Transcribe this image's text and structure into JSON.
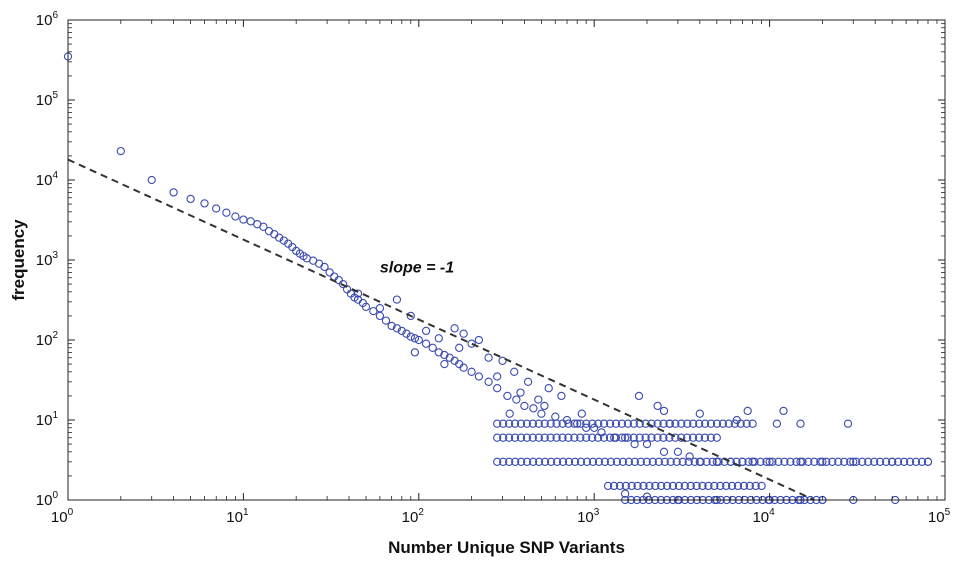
{
  "chart_data": {
    "type": "scatter",
    "title": "",
    "xlabel": "Number Unique SNP Variants",
    "ylabel": "frequency",
    "x_scale": "log",
    "y_scale": "log",
    "xlim": [
      1,
      100000
    ],
    "ylim": [
      1,
      1000000
    ],
    "x_ticks": [
      {
        "base": "10",
        "exp": "0",
        "value": 1
      },
      {
        "base": "10",
        "exp": "1",
        "value": 10
      },
      {
        "base": "10",
        "exp": "2",
        "value": 100
      },
      {
        "base": "10",
        "exp": "3",
        "value": 1000
      },
      {
        "base": "10",
        "exp": "4",
        "value": 10000
      },
      {
        "base": "10",
        "exp": "5",
        "value": 100000
      }
    ],
    "y_ticks": [
      {
        "base": "10",
        "exp": "0",
        "value": 1
      },
      {
        "base": "10",
        "exp": "1",
        "value": 10
      },
      {
        "base": "10",
        "exp": "2",
        "value": 100
      },
      {
        "base": "10",
        "exp": "3",
        "value": 1000
      },
      {
        "base": "10",
        "exp": "4",
        "value": 10000
      },
      {
        "base": "10",
        "exp": "5",
        "value": 100000
      },
      {
        "base": "10",
        "exp": "6",
        "value": 1000000
      }
    ],
    "grid": false,
    "marker_color": "#3b4bb0",
    "line_color": "#333333",
    "series": [
      {
        "type": "scatter",
        "marker": "open-circle",
        "points": [
          [
            1,
            350000
          ],
          [
            2,
            23000
          ],
          [
            3,
            10000
          ],
          [
            4,
            7000
          ],
          [
            5,
            5800
          ],
          [
            6,
            5100
          ],
          [
            7,
            4400
          ],
          [
            8,
            3900
          ],
          [
            9,
            3500
          ],
          [
            10,
            3200
          ],
          [
            11,
            3050
          ],
          [
            12,
            2800
          ],
          [
            13,
            2600
          ],
          [
            14,
            2300
          ],
          [
            15,
            2100
          ],
          [
            16,
            1900
          ],
          [
            17,
            1750
          ],
          [
            18,
            1600
          ],
          [
            19,
            1450
          ],
          [
            20,
            1300
          ],
          [
            21,
            1200
          ],
          [
            22,
            1120
          ],
          [
            23,
            1050
          ],
          [
            25,
            980
          ],
          [
            27,
            900
          ],
          [
            29,
            820
          ],
          [
            31,
            700
          ],
          [
            33,
            620
          ],
          [
            35,
            560
          ],
          [
            37,
            500
          ],
          [
            39,
            430
          ],
          [
            41,
            380
          ],
          [
            43,
            340
          ],
          [
            45,
            320
          ],
          [
            48,
            290
          ],
          [
            50,
            260
          ],
          [
            55,
            230
          ],
          [
            60,
            200
          ],
          [
            65,
            175
          ],
          [
            70,
            150
          ],
          [
            75,
            140
          ],
          [
            80,
            130
          ],
          [
            85,
            120
          ],
          [
            90,
            110
          ],
          [
            95,
            105
          ],
          [
            100,
            100
          ],
          [
            110,
            90
          ],
          [
            120,
            80
          ],
          [
            130,
            70
          ],
          [
            140,
            65
          ],
          [
            150,
            60
          ],
          [
            160,
            55
          ],
          [
            170,
            50
          ],
          [
            180,
            45
          ],
          [
            200,
            40
          ],
          [
            220,
            35
          ],
          [
            250,
            30
          ],
          [
            280,
            25
          ],
          [
            320,
            20
          ],
          [
            360,
            18
          ],
          [
            400,
            15
          ],
          [
            450,
            14
          ],
          [
            500,
            12
          ],
          [
            600,
            11
          ],
          [
            700,
            10
          ],
          [
            800,
            9
          ],
          [
            900,
            8
          ],
          [
            1000,
            8
          ],
          [
            1100,
            7
          ],
          [
            1300,
            6
          ],
          [
            1500,
            6
          ],
          [
            1700,
            5
          ],
          [
            2000,
            5
          ],
          [
            2500,
            4
          ],
          [
            3000,
            4
          ],
          [
            3500,
            3.5
          ],
          [
            4000,
            3
          ],
          [
            5000,
            3
          ],
          [
            6000,
            3
          ],
          [
            7000,
            3
          ],
          [
            8000,
            3
          ],
          [
            10000,
            3
          ],
          [
            15000,
            3
          ],
          [
            20000,
            3
          ],
          [
            30000,
            3
          ],
          [
            50000,
            3
          ],
          [
            80000,
            3
          ],
          [
            1500,
            1.2
          ],
          [
            2000,
            1.1
          ],
          [
            3000,
            1
          ],
          [
            5000,
            1
          ],
          [
            10000,
            1
          ],
          [
            15000,
            1
          ],
          [
            20000,
            1
          ],
          [
            30000,
            1
          ],
          [
            52000,
            1
          ],
          [
            15000,
            9
          ],
          [
            28000,
            9
          ],
          [
            12000,
            13
          ],
          [
            2500,
            13
          ],
          [
            1800,
            20
          ],
          [
            2300,
            15
          ],
          [
            6500,
            10
          ],
          [
            11000,
            9
          ],
          [
            7500,
            13
          ],
          [
            4000,
            12
          ],
          [
            2700,
            9
          ],
          [
            850,
            12
          ],
          [
            180,
            120
          ],
          [
            220,
            100
          ],
          [
            300,
            55
          ],
          [
            75,
            320
          ],
          [
            90,
            200
          ],
          [
            45,
            380
          ],
          [
            60,
            250
          ],
          [
            130,
            105
          ],
          [
            170,
            80
          ],
          [
            250,
            60
          ],
          [
            350,
            40
          ],
          [
            420,
            30
          ],
          [
            550,
            25
          ],
          [
            650,
            20
          ],
          [
            520,
            15
          ],
          [
            330,
            12
          ],
          [
            140,
            50
          ],
          [
            110,
            130
          ],
          [
            95,
            70
          ],
          [
            160,
            140
          ],
          [
            200,
            90
          ],
          [
            280,
            35
          ],
          [
            380,
            22
          ],
          [
            480,
            18
          ]
        ],
        "flat_bands": [
          {
            "y": 9,
            "x_from": 280,
            "x_to": 8000
          },
          {
            "y": 6,
            "x_from": 280,
            "x_to": 5000
          },
          {
            "y": 3,
            "x_from": 280,
            "x_to": 80000
          },
          {
            "y": 1.5,
            "x_from": 1200,
            "x_to": 9000
          },
          {
            "y": 1,
            "x_from": 1500,
            "x_to": 20000
          }
        ]
      },
      {
        "type": "line",
        "style": "dashed",
        "points": [
          [
            1,
            18000
          ],
          [
            18000,
            1
          ]
        ]
      }
    ],
    "annotations": [
      {
        "text": "slope = -1",
        "x": 60,
        "y": 700
      }
    ]
  }
}
